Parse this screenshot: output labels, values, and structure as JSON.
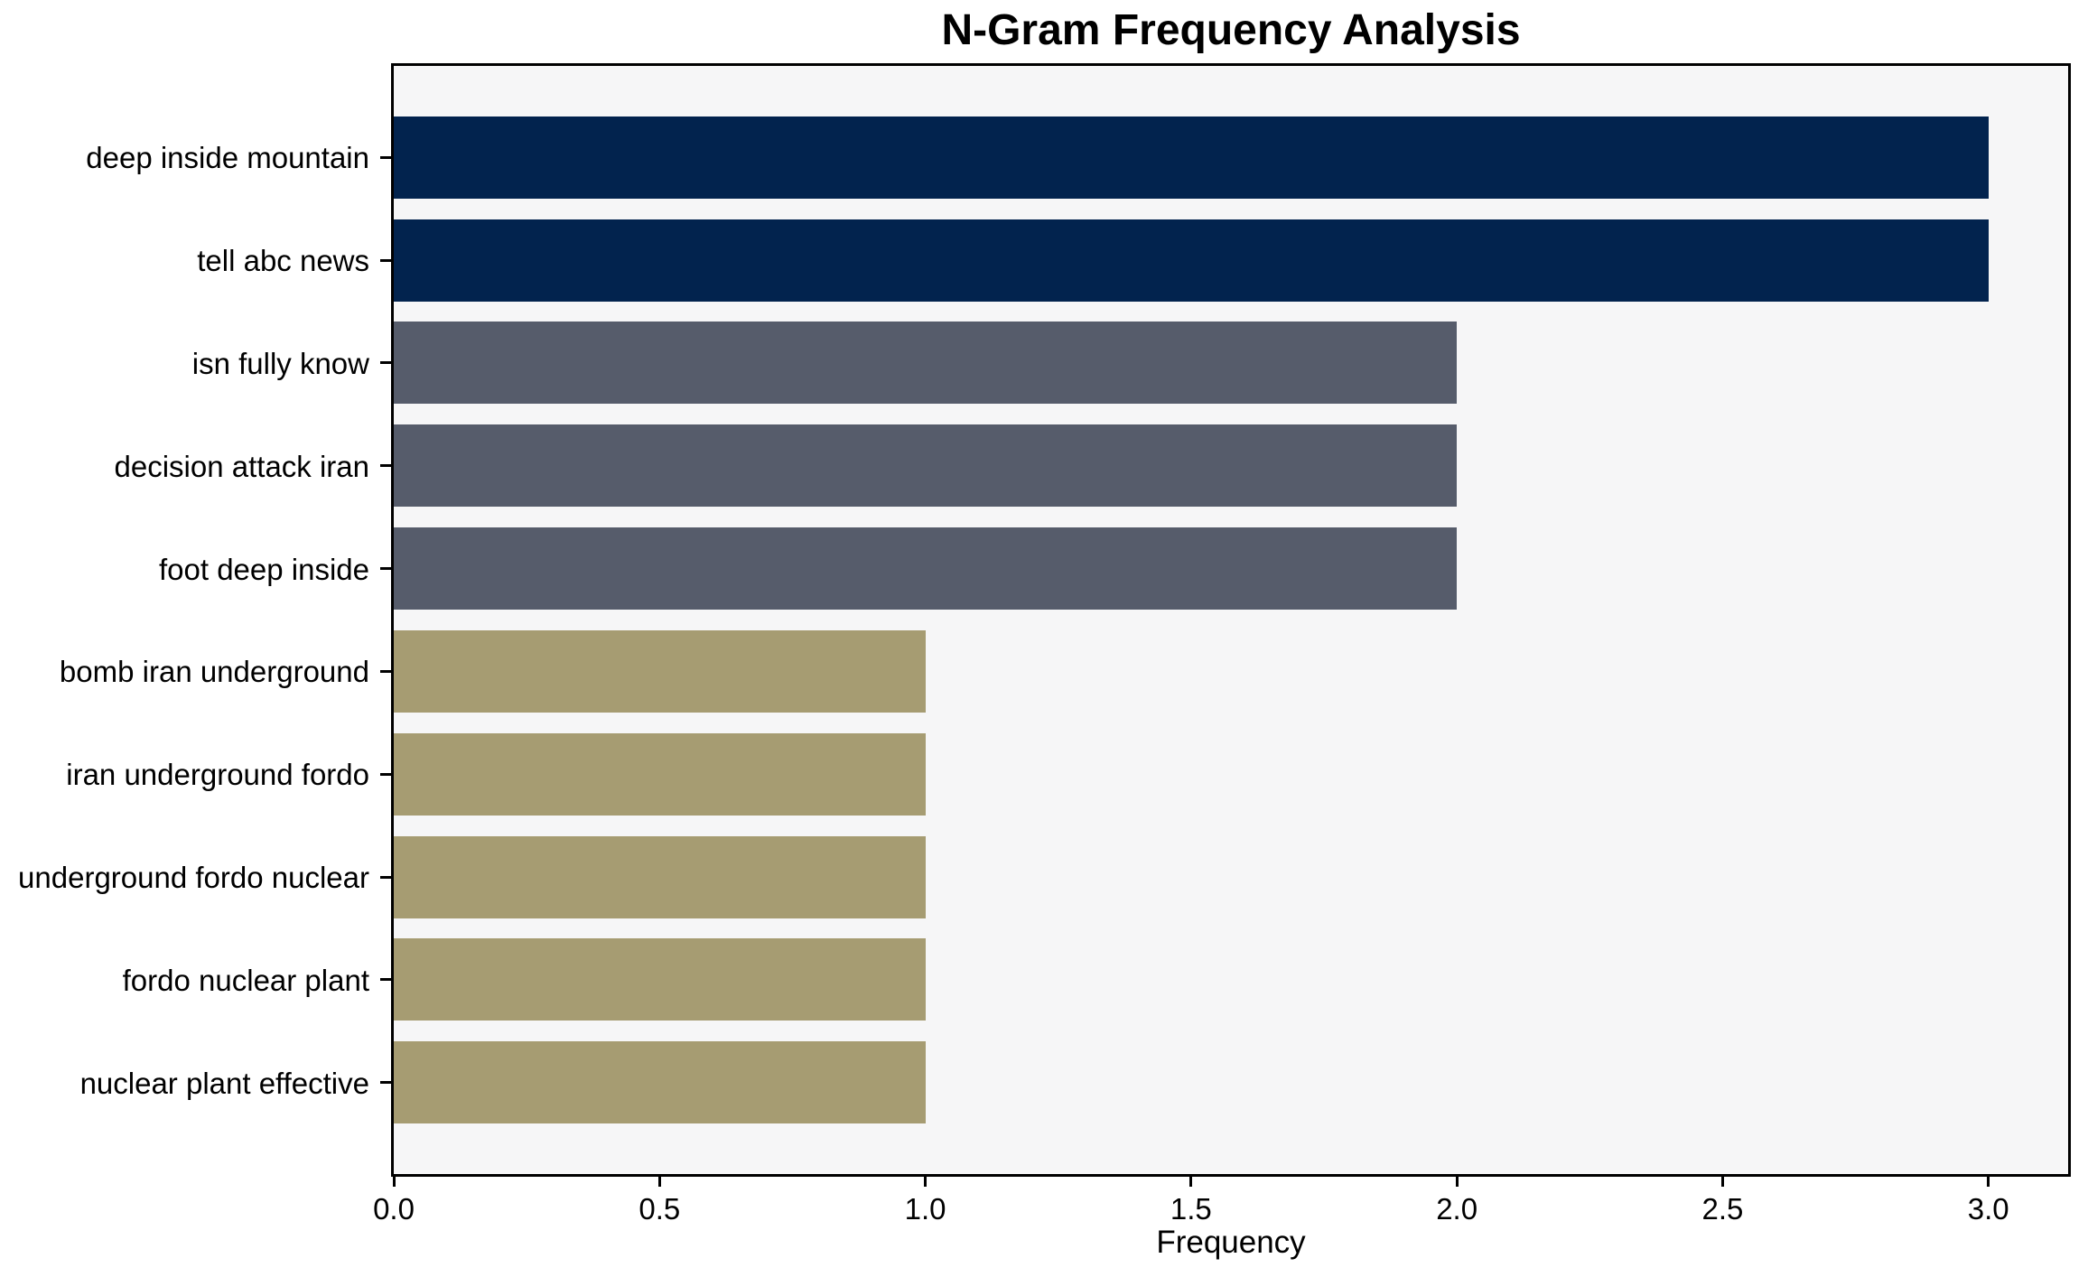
{
  "chart_data": {
    "type": "bar",
    "orientation": "horizontal",
    "title": "N-Gram Frequency Analysis",
    "xlabel": "Frequency",
    "ylabel": "",
    "categories": [
      "deep inside mountain",
      "tell abc news",
      "isn fully know",
      "decision attack iran",
      "foot deep inside",
      "bomb iran underground",
      "iran underground fordo",
      "underground fordo nuclear",
      "fordo nuclear plant",
      "nuclear plant effective"
    ],
    "values": [
      3,
      3,
      2,
      2,
      2,
      1,
      1,
      1,
      1,
      1
    ],
    "bar_colors": [
      "#02234e",
      "#02234e",
      "#565c6b",
      "#565c6b",
      "#565c6b",
      "#a69c72",
      "#a69c72",
      "#a69c72",
      "#a69c72",
      "#a69c72"
    ],
    "xlim": [
      0,
      3.15
    ],
    "xtick_labels": [
      "0.0",
      "0.5",
      "1.0",
      "1.5",
      "2.0",
      "2.5",
      "3.0"
    ],
    "xtick_values": [
      0,
      0.5,
      1.0,
      1.5,
      2.0,
      2.5,
      3.0
    ],
    "grid": false,
    "legend": false,
    "colors": {
      "figure_bg": "#ffffff",
      "plot_bg": "#f6f6f7",
      "spine": "#000000",
      "text": "#000000"
    }
  }
}
